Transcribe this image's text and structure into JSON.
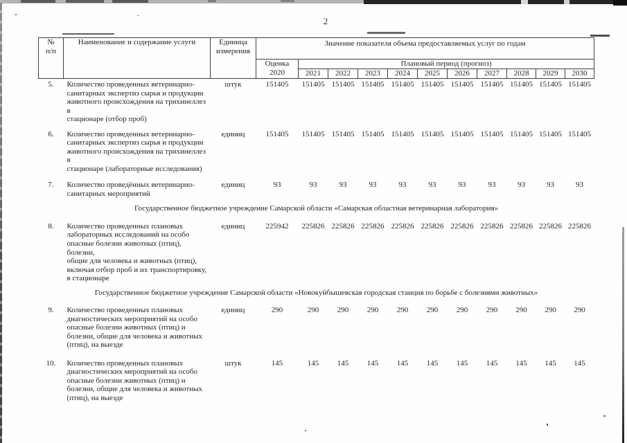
{
  "page": {
    "number": "2"
  },
  "table": {
    "headers": {
      "num": "№\nп/п",
      "name": "Наименование и содержание услуги",
      "unit": "Единица\nизмерения",
      "values_title": "Значение показателя объема предоставляемых услуг по годам",
      "estimate": "Оценка\n2020",
      "plan_period": "Плановый период (прогноз)",
      "years": [
        "2021",
        "2022",
        "2023",
        "2024",
        "2025",
        "2026",
        "2027",
        "2028",
        "2029",
        "2030"
      ]
    },
    "rows": [
      {
        "num": "5.",
        "name": "Количество проведенных ветеринарно-\nсанитарных экспертиз сырья и продукции\nживотного происхождения на трихинеллез в\nстационаре (отбор проб)",
        "unit": "штук",
        "values": [
          "151405",
          "151405",
          "151405",
          "151405",
          "151405",
          "151405",
          "151405",
          "151405",
          "151405",
          "151405",
          "151405"
        ]
      },
      {
        "num": "6.",
        "name": "Количество проведенных ветеринарно-\nсанитарных экспертиз сырья и продукции\nживотного происхождения на трихинеллез в\nстационаре (лабораторные исследования)",
        "unit": "единиц",
        "values": [
          "151405",
          "151405",
          "151405",
          "151405",
          "151405",
          "151405",
          "151405",
          "151405",
          "151405",
          "151405",
          "151405"
        ]
      },
      {
        "num": "7.",
        "name": "Количество проведённых ветеринарно-\nсанитарных мероприятий",
        "unit": "единиц",
        "values": [
          "93",
          "93",
          "93",
          "93",
          "93",
          "93",
          "93",
          "93",
          "93",
          "93",
          "93"
        ]
      },
      {
        "section": "Государственное бюджетное учреждение Самарской области «Самарская областная ветеринарная лаборатория»"
      },
      {
        "num": "8.",
        "name": "Количество проведенных плановых\nлабораторных исследований на особо\nопасные болезни животных (птиц), болезни,\nобщие для человека и животных (птиц),\nвключая отбор проб и их транспортировку,\nв стационаре",
        "unit": "единиц",
        "values": [
          "225942",
          "225826",
          "225826",
          "225826",
          "225826",
          "225826",
          "225826",
          "225826",
          "225826",
          "225826",
          "225826"
        ]
      },
      {
        "section": "Государственное бюджетное учреждение Самарской области «Новокуйбышевская городская станция по борьбе с болезнями животных»"
      },
      {
        "num": "9.",
        "name": "Количество проведенных плановых\nдиагностических мероприятий на особо\nопасные болезни животных (птиц) и\nболезни, общие для человека и животных\n(птиц), на выезде",
        "unit": "единиц",
        "values": [
          "290",
          "290",
          "290",
          "290",
          "290",
          "290",
          "290",
          "290",
          "290",
          "290",
          "290"
        ]
      },
      {
        "num": "10.",
        "name": "Количество проведенных плановых\nдиагностических мероприятий на особо\nопасные болезни животных (птиц) и\nболезни, общие для человека и животных\n(птиц), на выезде",
        "unit": "штук",
        "values": [
          "145",
          "145",
          "145",
          "145",
          "145",
          "145",
          "145",
          "145",
          "145",
          "145",
          "145"
        ]
      }
    ]
  }
}
